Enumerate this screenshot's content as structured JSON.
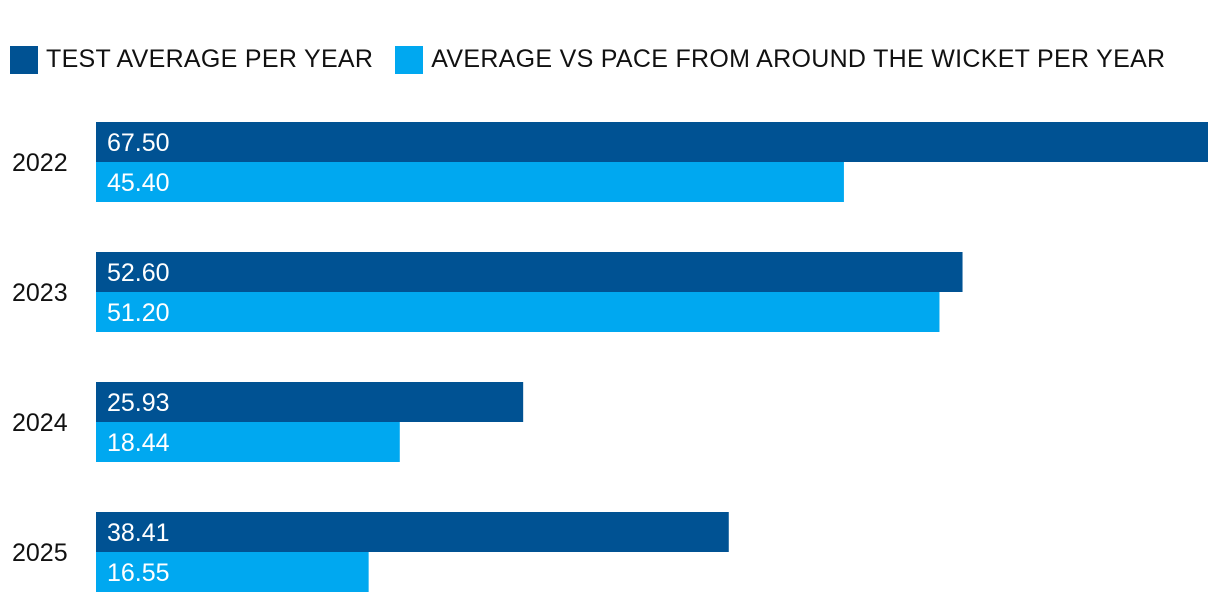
{
  "chart_data": {
    "type": "bar",
    "orientation": "horizontal",
    "categories": [
      "2022",
      "2023",
      "2024",
      "2025"
    ],
    "series": [
      {
        "name": "TEST AVERAGE PER YEAR",
        "color": "#005293",
        "values": [
          67.5,
          52.6,
          25.93,
          38.41
        ],
        "labels": [
          "67.50",
          "52.60",
          "25.93",
          "38.41"
        ]
      },
      {
        "name": "AVERAGE VS PACE FROM AROUND THE WICKET PER YEAR",
        "color": "#00a8f0",
        "values": [
          45.4,
          51.2,
          18.44,
          16.55
        ],
        "labels": [
          "45.40",
          "51.20",
          "18.44",
          "16.55"
        ]
      }
    ],
    "xlim": [
      0,
      67.5
    ],
    "grid": false,
    "legend": "top-left",
    "data_labels": "inside-start"
  }
}
